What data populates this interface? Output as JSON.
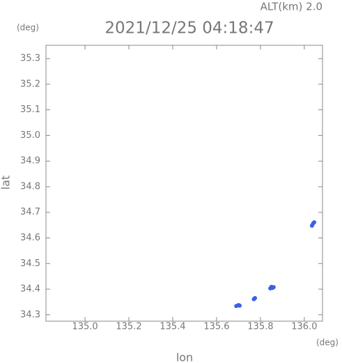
{
  "chart_data": {
    "type": "scatter",
    "title": "2021/12/25 04:18:47",
    "subtitle": "ALT(km) 2.0",
    "y_unit": "(deg)",
    "x_unit": "(deg)",
    "xlabel": "lon",
    "ylabel": "lat",
    "color": "#3b5fe6",
    "x": [
      135.69,
      135.7,
      135.705,
      135.77,
      135.775,
      135.845,
      135.85,
      135.855,
      135.86,
      136.035,
      136.04,
      136.045
    ],
    "y": [
      34.334,
      34.338,
      34.336,
      34.361,
      34.365,
      34.403,
      34.409,
      34.405,
      34.408,
      34.648,
      34.656,
      34.661
    ],
    "xlim": [
      134.822,
      136.083
    ],
    "ylim": [
      34.275,
      35.352
    ],
    "xticks": [
      {
        "value": 135.0,
        "label": "135.0"
      },
      135.2,
      135.4,
      135.6,
      135.8,
      {
        "value": 136.0,
        "label": "136.0"
      }
    ],
    "yticks": [
      34.3,
      34.4,
      34.5,
      34.6,
      34.7,
      34.8,
      34.9,
      {
        "value": 35.0,
        "label": "35.0"
      },
      35.1,
      35.2,
      35.3
    ]
  }
}
